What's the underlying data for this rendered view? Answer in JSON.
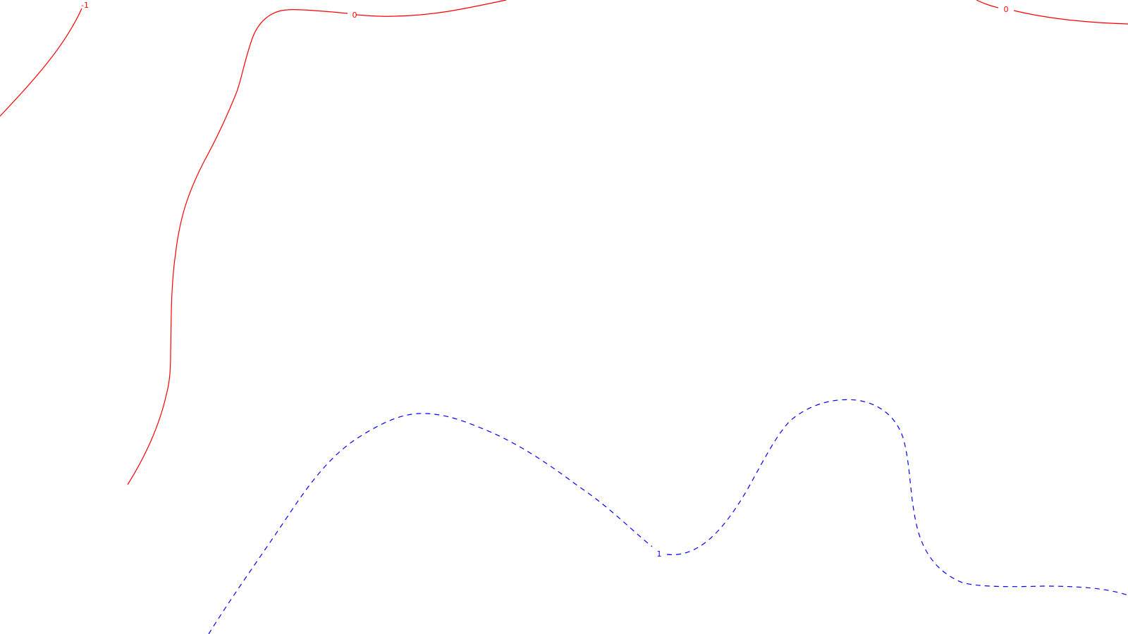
{
  "map": {
    "background_color": "#ffffff",
    "contours": [
      {
        "id": "contour-minus1",
        "level_label": "-1",
        "color": "#ff0000",
        "style": "solid"
      },
      {
        "id": "contour-zero-left",
        "level_label": "0",
        "color": "#ff0000",
        "style": "solid"
      },
      {
        "id": "contour-zero-right",
        "level_label": "0",
        "color": "#ff0000",
        "style": "solid"
      },
      {
        "id": "contour-one",
        "level_label": "1",
        "color": "#0000ff",
        "style": "dashed"
      }
    ]
  }
}
